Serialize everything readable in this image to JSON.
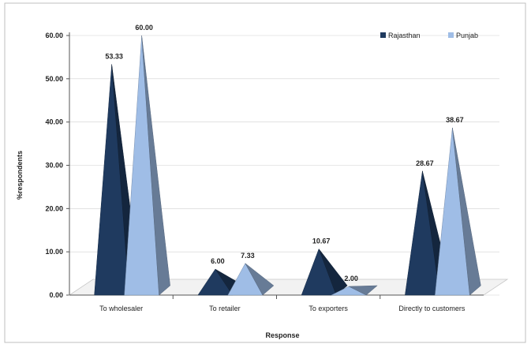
{
  "chart_data": {
    "type": "bar",
    "title": "",
    "xlabel": "Response",
    "ylabel": "%respondents",
    "categories": [
      "To wholesaler",
      "To retailer",
      "To exporters",
      "Directly to customers"
    ],
    "series": [
      {
        "name": "Rajasthan",
        "values": [
          53.33,
          6.0,
          10.67,
          28.67
        ],
        "labels": [
          "53.33",
          "6.00",
          "10.67",
          "28.67"
        ]
      },
      {
        "name": "Punjab",
        "values": [
          60.0,
          7.33,
          2.0,
          38.67
        ],
        "labels": [
          "60.00",
          "7.33",
          "2.00",
          "38.67"
        ]
      }
    ],
    "ylim": [
      0,
      60
    ],
    "yticks": [
      "0.00",
      "10.00",
      "20.00",
      "30.00",
      "40.00",
      "50.00",
      "60.00"
    ],
    "legend_position": "top-right",
    "bar_shape": "pyramid",
    "colors": {
      "Rajasthan": "#1f3a5f",
      "Punjab": "#9fbde6",
      "gridline": "#d0d0d0"
    }
  }
}
